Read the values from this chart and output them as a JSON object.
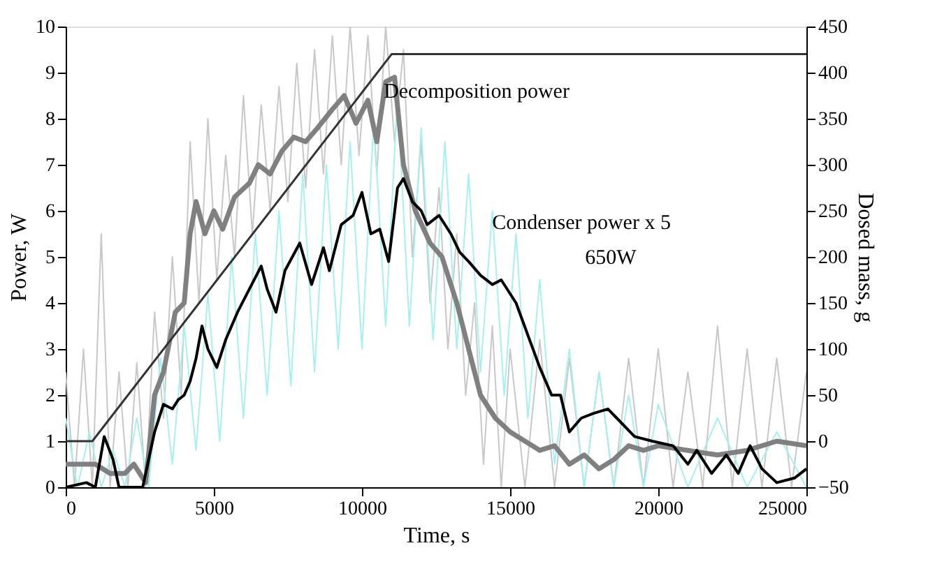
{
  "chart_data": {
    "type": "line",
    "xlabel": "Time, s",
    "ylabel": "Power, W",
    "y2label": "Dosed mass, g",
    "xlim": [
      0,
      25000
    ],
    "xticks": [
      0,
      5000,
      10000,
      15000,
      20000,
      25000
    ],
    "ylim": [
      0,
      10
    ],
    "yticks": [
      0,
      1,
      2,
      3,
      4,
      5,
      6,
      7,
      8,
      9,
      10
    ],
    "y2lim": [
      -50,
      450
    ],
    "y2ticks": [
      -50,
      0,
      50,
      100,
      150,
      200,
      250,
      300,
      350,
      400,
      450
    ],
    "grid": false,
    "marker": "none",
    "line_style": "solid",
    "series": [
      {
        "color": "#c8c8c8",
        "x": [
          0,
          300,
          600,
          900,
          1200,
          1500,
          1800,
          2100,
          2400,
          2700,
          3000,
          3300,
          3600,
          3900,
          4200,
          4500,
          4800,
          5100,
          5400,
          5700,
          6000,
          6300,
          6600,
          6900,
          7200,
          7500,
          7800,
          8100,
          8400,
          8700,
          9000,
          9300,
          9600,
          9900,
          10200,
          10500,
          10800,
          11100,
          11400,
          11700,
          12000,
          12300,
          12600,
          12900,
          13200,
          13500,
          13800,
          14100,
          14400,
          14700,
          15000,
          15500,
          16000,
          16500,
          17000,
          17500,
          18000,
          18500,
          19000,
          19500,
          20000,
          20500,
          21000,
          21500,
          22000,
          22500,
          23000,
          23500,
          24000,
          24500,
          25000
        ],
        "values": [
          2.5,
          0,
          3,
          0,
          5.5,
          0,
          2.5,
          0,
          2.7,
          0,
          3.8,
          1.5,
          5,
          2,
          7.5,
          4,
          8,
          4.5,
          7.2,
          5,
          8.5,
          5.5,
          8.3,
          6,
          8.7,
          6.2,
          9.2,
          6.5,
          9.5,
          6.8,
          9.8,
          7,
          10,
          7.2,
          9.8,
          6.8,
          10,
          7.5,
          9.5,
          5,
          7.5,
          4,
          6.5,
          3,
          5.5,
          2,
          4,
          0.5,
          3.5,
          0,
          3,
          0,
          3.2,
          0,
          2.8,
          0,
          2.5,
          0,
          2.8,
          0,
          3,
          0,
          2.5,
          0,
          3.5,
          0,
          3,
          0,
          2.8,
          0,
          2.5
        ]
      },
      {
        "color": "#a6f0f0",
        "x": [
          0,
          400,
          800,
          1200,
          1600,
          2000,
          2400,
          2800,
          3200,
          3600,
          4000,
          4400,
          4800,
          5200,
          5600,
          6000,
          6400,
          6800,
          7200,
          7600,
          8000,
          8400,
          8800,
          9200,
          9600,
          10000,
          10400,
          10800,
          11200,
          11600,
          12000,
          12400,
          12800,
          13200,
          13600,
          14000,
          14400,
          14800,
          15200,
          15600,
          16000,
          16500,
          17000,
          17500,
          18000,
          18500,
          19000,
          19500,
          20000,
          21000,
          22000,
          23000,
          24000,
          25000
        ],
        "values": [
          1.5,
          0,
          1.2,
          0,
          0.8,
          0,
          1.5,
          0,
          2.8,
          0.5,
          3.5,
          0.8,
          4.2,
          1,
          5,
          1.5,
          5.5,
          2,
          6,
          2.2,
          6.8,
          2.5,
          7,
          3,
          7.5,
          3,
          8,
          3.5,
          8.5,
          3.5,
          7.8,
          3.2,
          7.5,
          3,
          6.8,
          2.5,
          6,
          2,
          5.5,
          1.5,
          4.5,
          0.5,
          3,
          0,
          2.5,
          0,
          2,
          0,
          1.8,
          0,
          1.5,
          0,
          1.2,
          0
        ]
      },
      {
        "color": "#808080",
        "x": [
          0,
          1000,
          1500,
          2000,
          2300,
          2700,
          3000,
          3300,
          3700,
          4000,
          4200,
          4400,
          4700,
          5000,
          5300,
          5700,
          6200,
          6500,
          6900,
          7300,
          7700,
          8100,
          8500,
          9000,
          9400,
          9800,
          10200,
          10500,
          10800,
          11100,
          11400,
          11800,
          12300,
          12700,
          13200,
          13600,
          14000,
          14500,
          15000,
          15500,
          16000,
          16500,
          17000,
          17500,
          18000,
          18500,
          19000,
          19500,
          20000,
          21000,
          22000,
          23000,
          24000,
          25000
        ],
        "values": [
          0.5,
          0.5,
          0.3,
          0.3,
          0.5,
          0.1,
          2.0,
          2.5,
          3.8,
          4.0,
          5.5,
          6.2,
          5.5,
          6.0,
          5.6,
          6.3,
          6.6,
          7.0,
          6.8,
          7.3,
          7.6,
          7.5,
          7.8,
          8.2,
          8.5,
          7.9,
          8.4,
          7.5,
          8.8,
          8.9,
          7.0,
          6.0,
          5.3,
          5.0,
          4.0,
          3.0,
          2.0,
          1.5,
          1.2,
          1.0,
          0.8,
          0.9,
          0.5,
          0.7,
          0.4,
          0.6,
          0.9,
          0.8,
          0.9,
          0.8,
          0.7,
          0.8,
          1.0,
          0.9
        ]
      },
      {
        "color": "#000000",
        "x": [
          0,
          700,
          1000,
          1300,
          1600,
          1800,
          2600,
          3000,
          3300,
          3600,
          3800,
          4000,
          4200,
          4400,
          4600,
          4800,
          5100,
          5400,
          5800,
          6200,
          6600,
          6800,
          7100,
          7400,
          7900,
          8300,
          8700,
          8900,
          9300,
          9700,
          10000,
          10300,
          10600,
          10900,
          11200,
          11400,
          11700,
          12000,
          12200,
          12600,
          13000,
          13300,
          13600,
          14000,
          14400,
          14700,
          15200,
          15600,
          16000,
          16400,
          16700,
          17000,
          17400,
          17800,
          18300,
          18600,
          19200,
          19800,
          20500,
          21000,
          21300,
          21800,
          22300,
          22700,
          23100,
          23500,
          24000,
          24600,
          25000
        ],
        "values": [
          0,
          0.1,
          0,
          1.1,
          0.6,
          0,
          0,
          1.2,
          1.8,
          1.7,
          1.9,
          2.0,
          2.3,
          2.8,
          3.5,
          3.0,
          2.6,
          3.2,
          3.8,
          4.3,
          4.8,
          4.3,
          3.8,
          4.7,
          5.3,
          4.4,
          5.2,
          4.7,
          5.7,
          5.9,
          6.4,
          5.5,
          5.6,
          4.9,
          6.5,
          6.7,
          6.2,
          6.0,
          5.7,
          5.9,
          5.5,
          5.1,
          4.9,
          4.6,
          4.4,
          4.5,
          4.0,
          3.3,
          2.6,
          2.0,
          2.0,
          1.2,
          1.5,
          1.6,
          1.7,
          1.5,
          1.1,
          1.0,
          0.9,
          0.5,
          0.8,
          0.3,
          0.7,
          0.3,
          0.9,
          0.4,
          0.1,
          0.2,
          0.4
        ]
      },
      {
        "color": "#333333",
        "axis": "y2",
        "x": [
          0,
          900,
          11000,
          25000
        ],
        "values": [
          0,
          0,
          420,
          420
        ]
      }
    ],
    "annotations": [
      "Decomposition power",
      "Condenser power x 5",
      "650W"
    ]
  }
}
